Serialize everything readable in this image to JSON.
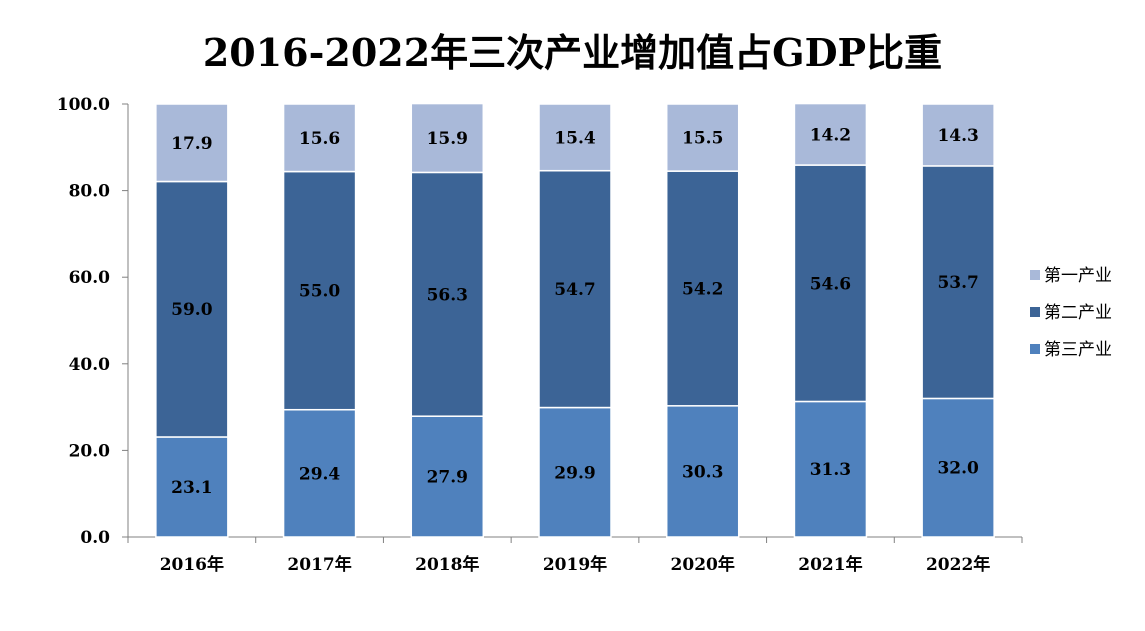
{
  "chart_data": {
    "type": "bar",
    "stacked": true,
    "title": "2016-2022年三次产业增加值占GDP比重",
    "xlabel": "",
    "ylabel": "",
    "categories": [
      "2016年",
      "2017年",
      "2018年",
      "2019年",
      "2020年",
      "2021年",
      "2022年"
    ],
    "series": [
      {
        "name": "第三产业",
        "color": "#4f81bd",
        "values": [
          23.1,
          29.4,
          27.9,
          29.9,
          30.3,
          31.3,
          32.0
        ]
      },
      {
        "name": "第二产业",
        "color": "#3c6496",
        "values": [
          59.0,
          55.0,
          56.3,
          54.7,
          54.2,
          54.6,
          53.7
        ]
      },
      {
        "name": "第一产业",
        "color": "#a9b9d9",
        "values": [
          17.9,
          15.6,
          15.9,
          15.4,
          15.5,
          14.2,
          14.3
        ]
      }
    ],
    "legend_order": [
      "第一产业",
      "第二产业",
      "第三产业"
    ],
    "ylim": [
      0,
      100
    ],
    "yticks": [
      "0.0",
      "20.0",
      "40.0",
      "60.0",
      "80.0",
      "100.0"
    ],
    "ytick_values": [
      0,
      20,
      40,
      60,
      80,
      100
    ],
    "grid": false,
    "legend_position": "right"
  }
}
